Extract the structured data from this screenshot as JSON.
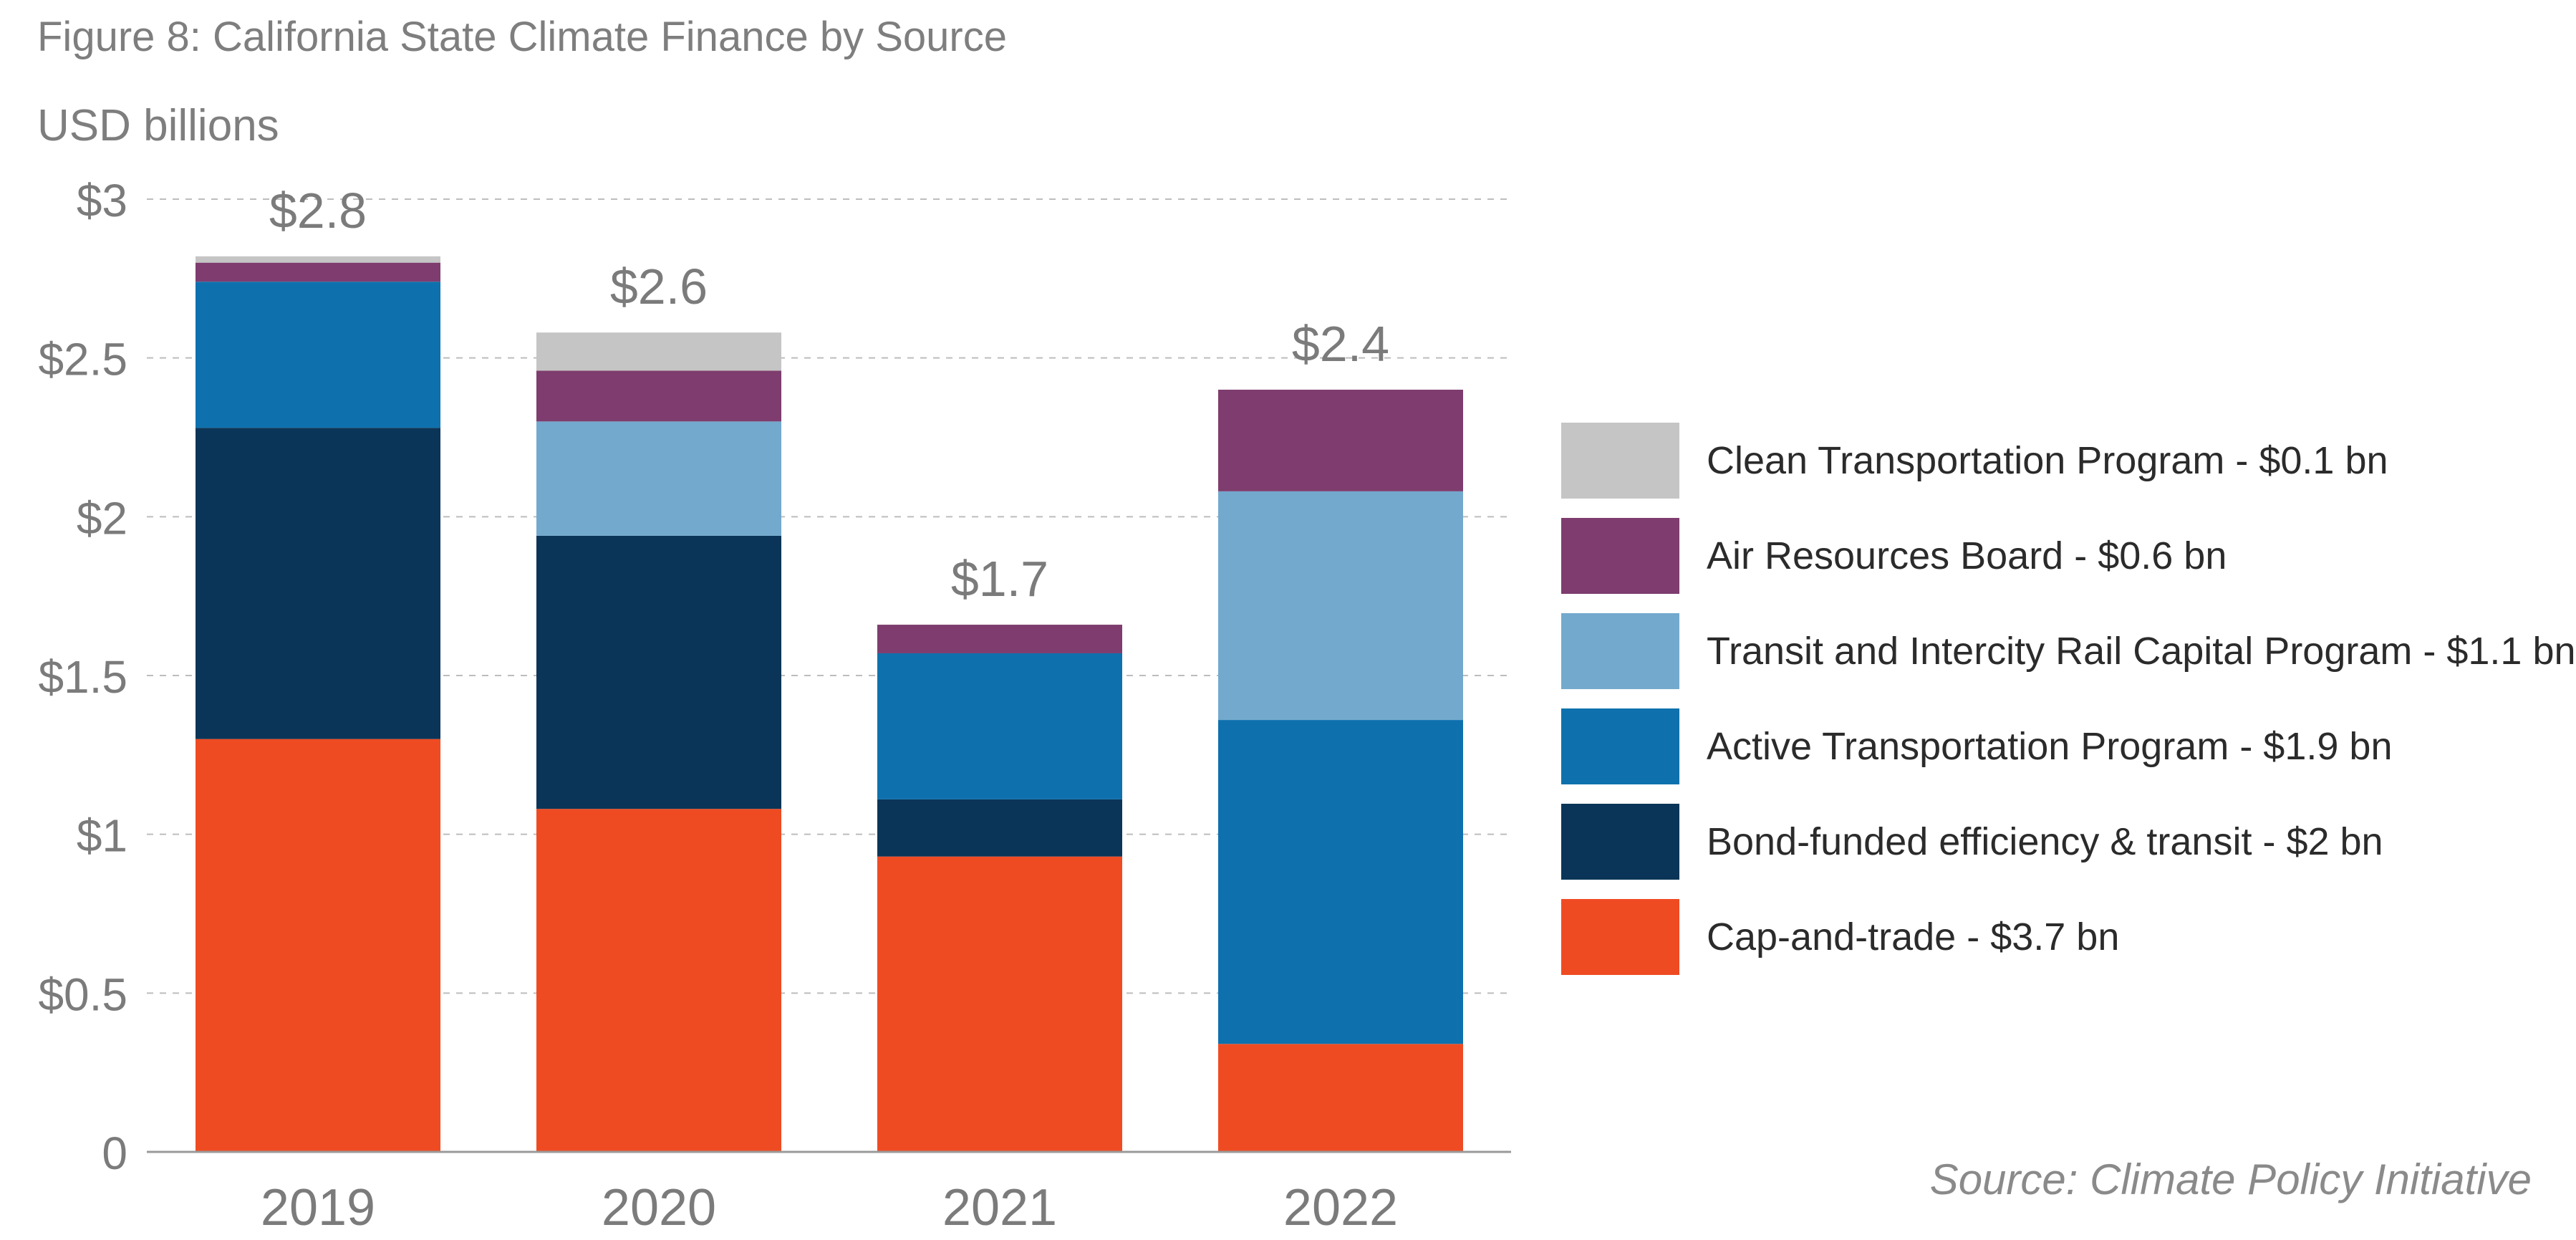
{
  "title": "Figure 8: California State Climate Finance by Source",
  "unit_label": "USD billions",
  "source": "Source: Climate Policy Initiative",
  "chart_data": {
    "type": "bar",
    "stacked": true,
    "title": "Figure 8: California State Climate Finance by Source",
    "ylabel": "USD billions",
    "xlabel": "",
    "categories": [
      "2019",
      "2020",
      "2021",
      "2022"
    ],
    "ylim": [
      0,
      3
    ],
    "yticks": [
      0,
      0.5,
      1,
      1.5,
      2,
      2.5,
      3
    ],
    "ytick_labels": [
      "0",
      "$0.5",
      "$1",
      "$1.5",
      "$2",
      "$2.5",
      "$3"
    ],
    "grid": "horizontal dashed",
    "legend_position": "right",
    "totals": [
      "$2.8",
      "$2.6",
      "$1.7",
      "$2.4"
    ],
    "series": [
      {
        "name": "Cap-and-trade - $3.7 bn",
        "color": "#ef4b23",
        "values": [
          1.3,
          1.08,
          0.93,
          0.34
        ]
      },
      {
        "name": "Bond-funded efficiency & transit - $2 bn",
        "color": "#0b3558",
        "values": [
          0.98,
          0.86,
          0.18,
          0
        ]
      },
      {
        "name": "Active Transportation Program - $1.9 bn",
        "color": "#0e71ad",
        "values": [
          0.46,
          0,
          0.46,
          1.02
        ]
      },
      {
        "name": "Transit and Intercity Rail Capital Program - $1.1 bn",
        "color": "#73a9cd",
        "values": [
          0,
          0.36,
          0,
          0.72
        ]
      },
      {
        "name": "Air Resources Board - $0.6 bn",
        "color": "#7e3d6e",
        "values": [
          0.06,
          0.16,
          0.09,
          0.32
        ]
      },
      {
        "name": "Clean Transportation Program - $0.1 bn",
        "color": "#c5c5c5",
        "values": [
          0.02,
          0.12,
          0,
          0
        ]
      }
    ]
  },
  "legend_order": [
    5,
    4,
    3,
    2,
    1,
    0
  ]
}
